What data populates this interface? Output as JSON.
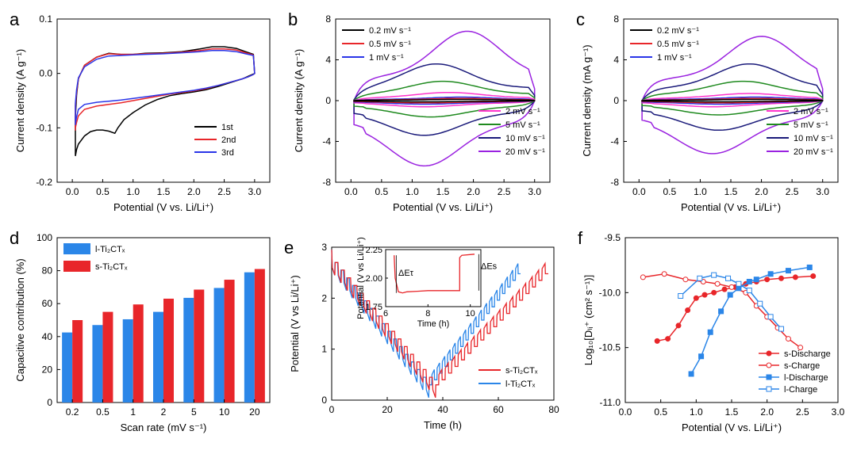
{
  "panels": [
    {
      "id": "a",
      "letter": "a",
      "type": "line",
      "xlabel": "Potential (V vs. Li/Li⁺)",
      "ylabel": "Current density (A g⁻¹)",
      "xlim": [
        -0.25,
        3.25
      ],
      "ylim": [
        -0.2,
        0.1
      ],
      "xticks": [
        0,
        0.5,
        1,
        1.5,
        2,
        2.5,
        3
      ],
      "xtick_labels": [
        "0.0",
        "0.5",
        "1.0",
        "1.5",
        "2.0",
        "2.5",
        "3.0"
      ],
      "yticks": [
        -0.2,
        -0.1,
        0,
        0.1
      ],
      "ytick_labels": [
        "-0.2",
        "-0.1",
        "0.0",
        "0.1"
      ],
      "legend": {
        "position": "bottom-right",
        "entries": [
          {
            "name": "1st",
            "color": "#000000"
          },
          {
            "name": "2nd",
            "color": "#e8262a"
          },
          {
            "name": "3rd",
            "color": "#2a35e8"
          }
        ]
      },
      "series": [
        {
          "name": "1st",
          "color": "#000000",
          "x": [
            0.05,
            0.05,
            0.07,
            0.1,
            0.2,
            0.4,
            0.6,
            0.8,
            1.0,
            1.2,
            1.5,
            1.8,
            2.1,
            2.3,
            2.5,
            2.7,
            2.85,
            2.98,
            3.0,
            2.98,
            2.9,
            2.8,
            2.6,
            2.4,
            2.2,
            2.0,
            1.8,
            1.6,
            1.4,
            1.2,
            1.0,
            0.85,
            0.75,
            0.7,
            0.6,
            0.5,
            0.4,
            0.3,
            0.2,
            0.1,
            0.07,
            0.05
          ],
          "y": [
            -0.15,
            -0.08,
            -0.04,
            -0.01,
            0.015,
            0.03,
            0.037,
            0.035,
            0.035,
            0.037,
            0.038,
            0.04,
            0.045,
            0.049,
            0.049,
            0.046,
            0.04,
            0.035,
            0.0,
            -0.001,
            -0.005,
            -0.01,
            -0.017,
            -0.024,
            -0.03,
            -0.034,
            -0.037,
            -0.041,
            -0.048,
            -0.058,
            -0.072,
            -0.085,
            -0.1,
            -0.11,
            -0.106,
            -0.104,
            -0.104,
            -0.107,
            -0.115,
            -0.13,
            -0.14,
            -0.152
          ]
        },
        {
          "name": "2nd",
          "color": "#e8262a",
          "x": [
            0.05,
            0.05,
            0.07,
            0.1,
            0.2,
            0.4,
            0.6,
            0.8,
            1.0,
            1.2,
            1.5,
            1.8,
            2.1,
            2.3,
            2.5,
            2.7,
            2.85,
            2.98,
            3.0,
            2.98,
            2.9,
            2.8,
            2.6,
            2.4,
            2.2,
            2.0,
            1.8,
            1.6,
            1.4,
            1.2,
            1.0,
            0.8,
            0.6,
            0.4,
            0.2,
            0.1,
            0.07,
            0.05
          ],
          "y": [
            -0.105,
            -0.06,
            -0.035,
            -0.01,
            0.015,
            0.03,
            0.036,
            0.035,
            0.035,
            0.036,
            0.037,
            0.039,
            0.042,
            0.045,
            0.045,
            0.043,
            0.038,
            0.034,
            0.0,
            -0.002,
            -0.006,
            -0.01,
            -0.016,
            -0.022,
            -0.028,
            -0.032,
            -0.035,
            -0.038,
            -0.042,
            -0.046,
            -0.05,
            -0.054,
            -0.057,
            -0.06,
            -0.066,
            -0.078,
            -0.09,
            -0.1
          ]
        },
        {
          "name": "3rd",
          "color": "#2a35e8",
          "x": [
            0.05,
            0.05,
            0.07,
            0.1,
            0.2,
            0.4,
            0.6,
            0.8,
            1.0,
            1.2,
            1.5,
            1.8,
            2.1,
            2.3,
            2.5,
            2.7,
            2.85,
            2.98,
            3.0,
            2.98,
            2.9,
            2.8,
            2.6,
            2.4,
            2.2,
            2.0,
            1.8,
            1.6,
            1.4,
            1.2,
            1.0,
            0.8,
            0.6,
            0.4,
            0.2,
            0.1,
            0.07,
            0.05
          ],
          "y": [
            -0.095,
            -0.055,
            -0.03,
            -0.008,
            0.012,
            0.026,
            0.032,
            0.033,
            0.034,
            0.035,
            0.036,
            0.038,
            0.04,
            0.042,
            0.042,
            0.04,
            0.036,
            0.033,
            0.0,
            -0.002,
            -0.006,
            -0.01,
            -0.016,
            -0.022,
            -0.027,
            -0.031,
            -0.034,
            -0.037,
            -0.04,
            -0.043,
            -0.046,
            -0.049,
            -0.051,
            -0.053,
            -0.057,
            -0.066,
            -0.08,
            -0.092
          ]
        }
      ]
    },
    {
      "id": "b",
      "letter": "b",
      "type": "line",
      "xlabel": "Potential (V vs. Li/Li⁺)",
      "ylabel": "Current density (A g⁻¹)",
      "xlim": [
        -0.25,
        3.25
      ],
      "ylim": [
        -8,
        8
      ],
      "xticks": [
        0,
        0.5,
        1,
        1.5,
        2,
        2.5,
        3
      ],
      "xtick_labels": [
        "0.0",
        "0.5",
        "1.0",
        "1.5",
        "2.0",
        "2.5",
        "3.0"
      ],
      "yticks": [
        -8,
        -4,
        0,
        4,
        8
      ],
      "ytick_labels": [
        "-8",
        "-4",
        "0",
        "4",
        "8"
      ],
      "legend_top": [
        {
          "name": "0.2 mV s⁻¹",
          "color": "#000000"
        },
        {
          "name": "0.5 mV s⁻¹",
          "color": "#e8262a"
        },
        {
          "name": "1 mV s⁻¹",
          "color": "#2a35e8"
        }
      ],
      "legend_bottom": [
        {
          "name": "2 mV s⁻¹",
          "color": "#ff33cc"
        },
        {
          "name": "5 mV s⁻¹",
          "color": "#1f8a1f"
        },
        {
          "name": "10 mV s⁻¹",
          "color": "#1a1a7a"
        },
        {
          "name": "20 mV s⁻¹",
          "color": "#9a22e0"
        }
      ],
      "loops": [
        {
          "name": "0.2 mV s⁻¹",
          "color": "#000000",
          "up": 0.12,
          "down": 0.12,
          "pos_peak": 1.8,
          "neg_peak": 1.2
        },
        {
          "name": "0.5 mV s⁻¹",
          "color": "#e8262a",
          "up": 0.22,
          "down": 0.22,
          "pos_peak": 1.8,
          "neg_peak": 1.2
        },
        {
          "name": "1 mV s⁻¹",
          "color": "#2a35e8",
          "up": 0.35,
          "down": 0.35,
          "pos_peak": 1.8,
          "neg_peak": 1.2
        },
        {
          "name": "2 mV s⁻¹",
          "color": "#ff33cc",
          "up": 0.8,
          "down": 0.6,
          "pos_peak": 1.6,
          "neg_peak": 1.2
        },
        {
          "name": "5 mV s⁻¹",
          "color": "#1f8a1f",
          "up": 1.9,
          "down": 1.6,
          "pos_peak": 1.5,
          "neg_peak": 1.3
        },
        {
          "name": "10 mV s⁻¹",
          "color": "#1a1a7a",
          "up": 3.6,
          "down": 3.4,
          "pos_peak": 1.4,
          "neg_peak": 1.2
        },
        {
          "name": "20 mV s⁻¹",
          "color": "#9a22e0",
          "up": 6.8,
          "down": 6.4,
          "pos_peak": 1.9,
          "neg_peak": 1.2
        }
      ]
    },
    {
      "id": "c",
      "letter": "c",
      "type": "line",
      "xlabel": "Potential (V vs. Li/Li⁺)",
      "ylabel": "Current density (mA g⁻¹)",
      "xlim": [
        -0.25,
        3.25
      ],
      "ylim": [
        -8,
        8
      ],
      "xticks": [
        0,
        0.5,
        1,
        1.5,
        2,
        2.5,
        3
      ],
      "xtick_labels": [
        "0.0",
        "0.5",
        "1.0",
        "1.5",
        "2.0",
        "2.5",
        "3.0"
      ],
      "yticks": [
        -8,
        -4,
        0,
        4,
        8
      ],
      "ytick_labels": [
        "-8",
        "-4",
        "0",
        "4",
        "8"
      ],
      "legend_top": [
        {
          "name": "0.2 mV s⁻¹",
          "color": "#000000"
        },
        {
          "name": "0.5 mV s⁻¹",
          "color": "#e8262a"
        },
        {
          "name": "1 mV s⁻¹",
          "color": "#2a35e8"
        }
      ],
      "legend_bottom": [
        {
          "name": "2 mV s⁻¹",
          "color": "#ff33cc"
        },
        {
          "name": "5 mV s⁻¹",
          "color": "#1f8a1f"
        },
        {
          "name": "10 mV s⁻¹",
          "color": "#1a1a7a"
        },
        {
          "name": "20 mV s⁻¹",
          "color": "#9a22e0"
        }
      ],
      "loops": [
        {
          "name": "0.2 mV s⁻¹",
          "color": "#000000",
          "up": 0.12,
          "down": 0.12,
          "pos_peak": 1.9,
          "neg_peak": 1.3
        },
        {
          "name": "0.5 mV s⁻¹",
          "color": "#e8262a",
          "up": 0.22,
          "down": 0.22,
          "pos_peak": 1.9,
          "neg_peak": 1.3
        },
        {
          "name": "1 mV s⁻¹",
          "color": "#2a35e8",
          "up": 0.35,
          "down": 0.35,
          "pos_peak": 1.9,
          "neg_peak": 1.3
        },
        {
          "name": "2 mV s⁻¹",
          "color": "#ff33cc",
          "up": 0.7,
          "down": 0.6,
          "pos_peak": 1.8,
          "neg_peak": 1.2
        },
        {
          "name": "5 mV s⁻¹",
          "color": "#1f8a1f",
          "up": 1.9,
          "down": 1.4,
          "pos_peak": 1.7,
          "neg_peak": 1.3
        },
        {
          "name": "10 mV s⁻¹",
          "color": "#1a1a7a",
          "up": 3.6,
          "down": 2.9,
          "pos_peak": 1.8,
          "neg_peak": 1.3
        },
        {
          "name": "20 mV s⁻¹",
          "color": "#9a22e0",
          "up": 6.3,
          "down": 5.2,
          "pos_peak": 2.0,
          "neg_peak": 1.2
        }
      ]
    },
    {
      "id": "d",
      "letter": "d",
      "type": "bar",
      "xlabel": "Scan rate (mV s⁻¹)",
      "ylabel": "Capacitive contribution (%)",
      "ylim": [
        0,
        100
      ],
      "yticks": [
        0,
        20,
        40,
        60,
        80,
        100
      ],
      "ytick_labels": [
        "0",
        "20",
        "40",
        "60",
        "80",
        "100"
      ],
      "categories": [
        "0.2",
        "0.5",
        "1",
        "2",
        "5",
        "10",
        "20"
      ],
      "series": [
        {
          "name": "l-Ti₂CTₓ",
          "color": "#2b86e8",
          "values": [
            42.5,
            47,
            50.5,
            55,
            63.5,
            69.5,
            79
          ]
        },
        {
          "name": "s-Ti₂CTₓ",
          "color": "#e8262a",
          "values": [
            50,
            55,
            59.5,
            63,
            68.5,
            74.5,
            81
          ]
        }
      ],
      "legend": {
        "position": "top-left"
      }
    },
    {
      "id": "e",
      "letter": "e",
      "type": "line",
      "xlabel": "Time (h)",
      "ylabel": "Potential (V vs Li/Li⁺)",
      "xlim": [
        0,
        80
      ],
      "ylim": [
        0,
        3
      ],
      "xticks": [
        0,
        20,
        40,
        60,
        80
      ],
      "xtick_labels": [
        "0",
        "20",
        "40",
        "60",
        "80"
      ],
      "yticks": [
        0,
        1,
        2,
        3
      ],
      "ytick_labels": [
        "0",
        "1",
        "2",
        "3"
      ],
      "legend": {
        "position": "bottom-right",
        "entries": [
          {
            "name": "s-Ti₂CTₓ",
            "color": "#e8262a"
          },
          {
            "name": "l-Ti₂CTₓ",
            "color": "#2b86e8"
          }
        ]
      },
      "gitt_red": {
        "t0": 0,
        "disch_end": 38.5,
        "pulses": 17,
        "charge_end": 78,
        "color": "#e8262a"
      },
      "gitt_blue": {
        "t0": 0,
        "disch_end": 36,
        "pulses": 17,
        "charge_end": 68,
        "color": "#2b86e8"
      },
      "inset": {
        "xlabel": "Time (h)",
        "ylabel": "Potential (V vs Li/Li⁺)",
        "xlim": [
          6,
          10.5
        ],
        "ylim": [
          1.75,
          2.25
        ],
        "xticks": [
          6,
          8,
          10
        ],
        "xtick_labels": [
          "6",
          "8",
          "10"
        ],
        "yticks": [
          1.75,
          2.0,
          2.25
        ],
        "ytick_labels": [
          "1.75",
          "2.00",
          "2.25"
        ],
        "annot_t": "ΔEτ",
        "annot_s": "ΔEs",
        "curve_x": [
          6.4,
          6.45,
          6.6,
          6.8,
          7.0,
          7.5,
          8.0,
          8.5,
          9.0,
          9.5,
          9.5,
          9.6,
          10.2
        ],
        "curve_y": [
          2.2,
          2.0,
          1.88,
          1.87,
          1.88,
          1.885,
          1.89,
          1.89,
          1.89,
          1.89,
          2.18,
          2.2,
          2.21
        ]
      }
    },
    {
      "id": "f",
      "letter": "f",
      "type": "line",
      "xlabel": "Potential (V vs. Li/Li⁺)",
      "ylabel": "Log₁₀[Dₗᵢ⁺ (cm² s⁻¹)]",
      "xlim": [
        0,
        3.0
      ],
      "ylim": [
        -11.0,
        -9.5
      ],
      "xticks": [
        0,
        0.5,
        1,
        1.5,
        2,
        2.5,
        3
      ],
      "xtick_labels": [
        "0.0",
        "0.5",
        "1.0",
        "1.5",
        "2.0",
        "2.5",
        "3.0"
      ],
      "yticks": [
        -11.0,
        -10.5,
        -10.0,
        -9.5
      ],
      "ytick_labels": [
        "-11.0",
        "-10.5",
        "-10.0",
        "-9.5"
      ],
      "legend": {
        "position": "bottom-right"
      },
      "series": [
        {
          "name": "s-Discharge",
          "color": "#e8262a",
          "filled": true,
          "x": [
            0.45,
            0.6,
            0.75,
            0.88,
            1.0,
            1.12,
            1.25,
            1.4,
            1.55,
            1.7,
            1.85,
            2.0,
            2.2,
            2.4,
            2.65
          ],
          "y": [
            -10.44,
            -10.42,
            -10.3,
            -10.16,
            -10.05,
            -10.02,
            -10.0,
            -9.97,
            -9.95,
            -9.92,
            -9.9,
            -9.88,
            -9.87,
            -9.86,
            -9.85
          ]
        },
        {
          "name": "s-Charge",
          "color": "#e8262a",
          "filled": false,
          "x": [
            0.25,
            0.55,
            0.85,
            1.1,
            1.3,
            1.5,
            1.7,
            1.85,
            2.0,
            2.15,
            2.3,
            2.47
          ],
          "y": [
            -9.86,
            -9.83,
            -9.88,
            -9.9,
            -9.92,
            -9.95,
            -10.0,
            -10.12,
            -10.22,
            -10.32,
            -10.42,
            -10.5
          ]
        },
        {
          "name": "l-Discharge",
          "color": "#2b86e8",
          "filled": true,
          "x": [
            0.93,
            1.07,
            1.2,
            1.35,
            1.48,
            1.6,
            1.75,
            1.85,
            2.05,
            2.3,
            2.6
          ],
          "y": [
            -10.74,
            -10.58,
            -10.36,
            -10.17,
            -10.02,
            -9.96,
            -9.9,
            -9.88,
            -9.83,
            -9.8,
            -9.77
          ]
        },
        {
          "name": "l-Charge",
          "color": "#2b86e8",
          "filled": false,
          "x": [
            0.78,
            1.05,
            1.25,
            1.45,
            1.6,
            1.75,
            1.9,
            2.05,
            2.2
          ],
          "y": [
            -10.03,
            -9.87,
            -9.84,
            -9.87,
            -9.92,
            -9.98,
            -10.1,
            -10.22,
            -10.33
          ]
        }
      ]
    }
  ]
}
